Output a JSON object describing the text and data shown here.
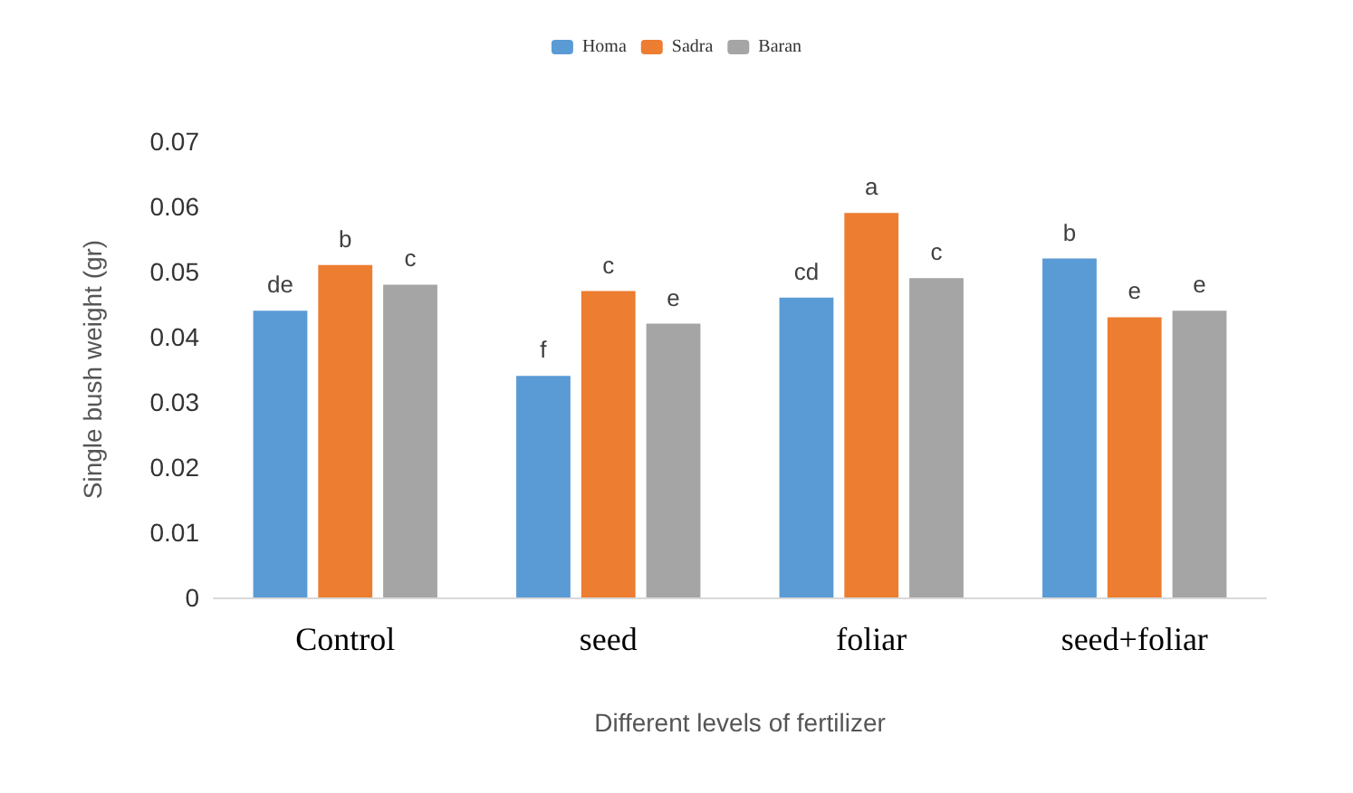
{
  "chart_data": {
    "type": "bar",
    "xlabel": "Different levels of fertilizer",
    "ylabel": "Single bush weight (gr)",
    "categories": [
      "Control",
      "seed",
      "foliar",
      "seed+foliar"
    ],
    "series": [
      {
        "name": "Homa",
        "color": "#5b9bd5",
        "values": [
          0.044,
          0.034,
          0.046,
          0.052
        ],
        "value_labels": [
          "de",
          "f",
          "cd",
          "b"
        ]
      },
      {
        "name": "Sadra",
        "color": "#ed7d31",
        "values": [
          0.051,
          0.047,
          0.059,
          0.043
        ],
        "value_labels": [
          "b",
          "c",
          "a",
          "e"
        ]
      },
      {
        "name": "Baran",
        "color": "#a5a5a5",
        "values": [
          0.048,
          0.042,
          0.049,
          0.044
        ],
        "value_labels": [
          "c",
          "e",
          "c",
          "e"
        ]
      }
    ],
    "ylim": [
      0,
      0.07
    ],
    "yticks": [
      0,
      0.01,
      0.02,
      0.03,
      0.04,
      0.05,
      0.06,
      0.07
    ],
    "grid": false,
    "legend": "top"
  }
}
